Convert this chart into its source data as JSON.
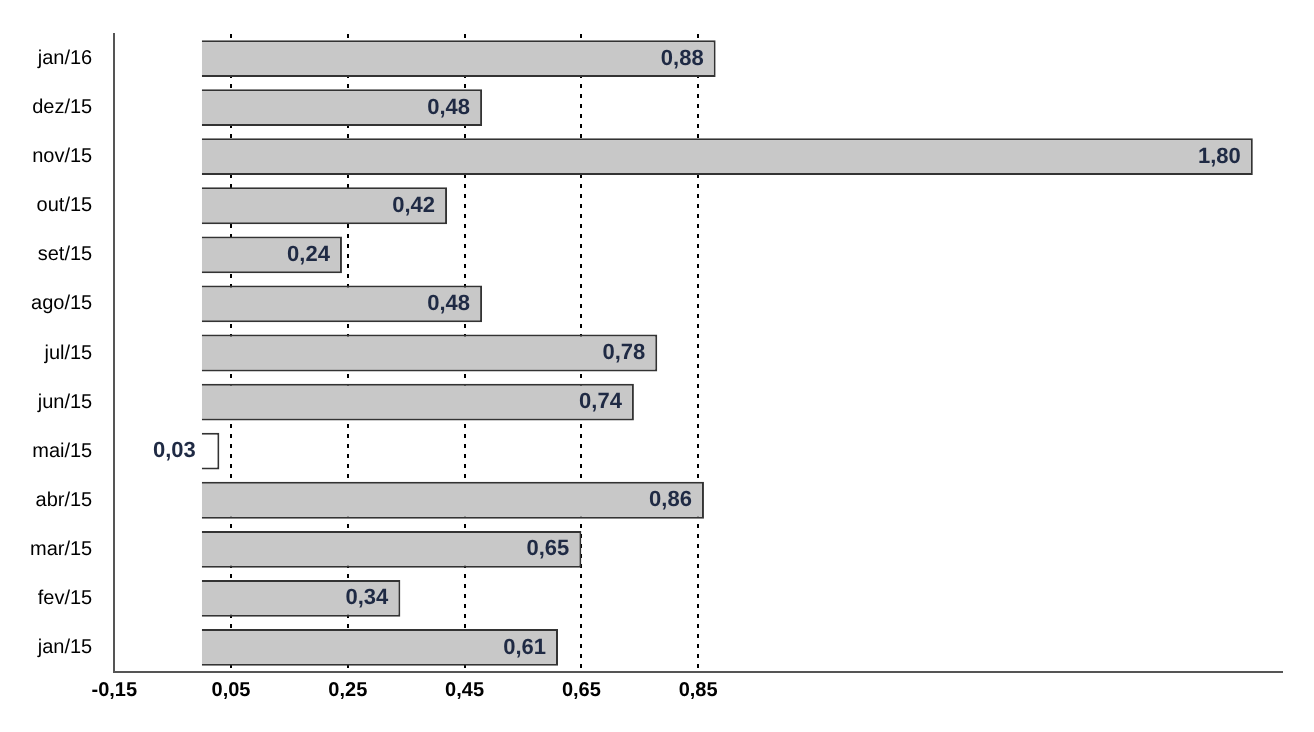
{
  "chart_data": {
    "type": "bar",
    "orientation": "horizontal",
    "categories": [
      "jan/16",
      "dez/15",
      "nov/15",
      "out/15",
      "set/15",
      "ago/15",
      "jul/15",
      "jun/15",
      "mai/15",
      "abr/15",
      "mar/15",
      "fev/15",
      "jan/15"
    ],
    "values": [
      0.88,
      0.48,
      1.8,
      0.42,
      0.24,
      0.48,
      0.78,
      0.74,
      0.03,
      0.86,
      0.65,
      0.34,
      0.61
    ],
    "value_labels": [
      "0,88",
      "0,48",
      "1,80",
      "0,42",
      "0,24",
      "0,48",
      "0,78",
      "0,74",
      "0,03",
      "0,86",
      "0,65",
      "0,34",
      "0,61"
    ],
    "colors": [
      "#c8c8c8",
      "#c8c8c8",
      "#c8c8c8",
      "#c8c8c8",
      "#c8c8c8",
      "#c8c8c8",
      "#c8c8c8",
      "#c8c8c8",
      "#ffffff",
      "#c8c8c8",
      "#c8c8c8",
      "#c8c8c8",
      "#c8c8c8"
    ],
    "xlim": [
      -0.15,
      1.85
    ],
    "xticks": [
      {
        "value": -0.15,
        "label": "-0,15"
      },
      {
        "value": 0.05,
        "label": "0,05"
      },
      {
        "value": 0.25,
        "label": "0,25"
      },
      {
        "value": 0.45,
        "label": "0,45"
      },
      {
        "value": 0.65,
        "label": "0,65"
      },
      {
        "value": 0.85,
        "label": "0,85"
      }
    ],
    "grid": "x",
    "legend": false
  }
}
